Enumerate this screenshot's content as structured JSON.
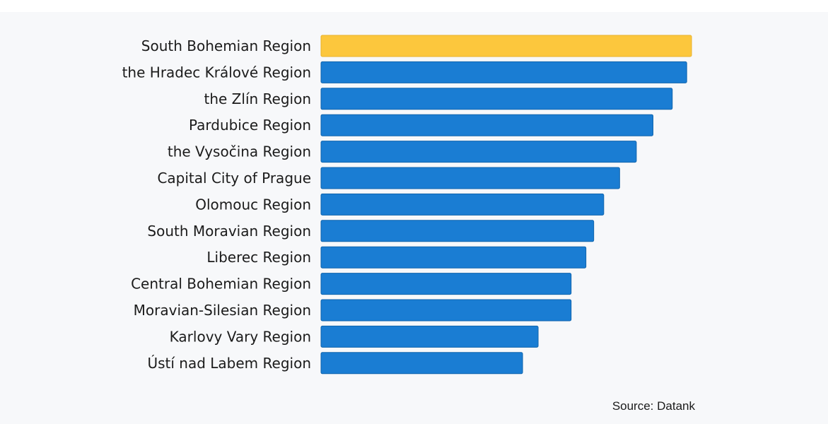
{
  "chart_data": {
    "type": "bar",
    "orientation": "horizontal",
    "categories": [
      "South Bohemian Region",
      "the Hradec Králové Region",
      "the Zlín Region",
      "Pardubice Region",
      "the Vysočina Region",
      "Capital City of Prague",
      "Olomouc Region",
      "South Moravian Region",
      "Liberec Region",
      "Central Bohemian Region",
      "Moravian-Silesian Region",
      "Karlovy Vary Region",
      "Ústí nad Labem Region"
    ],
    "values": [
      100,
      98.7,
      94.8,
      89.6,
      85.1,
      80.6,
      76.3,
      73.6,
      71.5,
      67.5,
      67.5,
      58.6,
      54.4
    ],
    "highlight_index": 0,
    "colors": {
      "highlight": "#fcc73d",
      "bar": "#1a7dd3",
      "bar_border": "#0f64ad",
      "highlight_border": "#e8b22a"
    },
    "xlim": [
      0,
      100
    ],
    "grid": false,
    "legend": "none"
  },
  "footer": {
    "source": "Source: Datank"
  }
}
